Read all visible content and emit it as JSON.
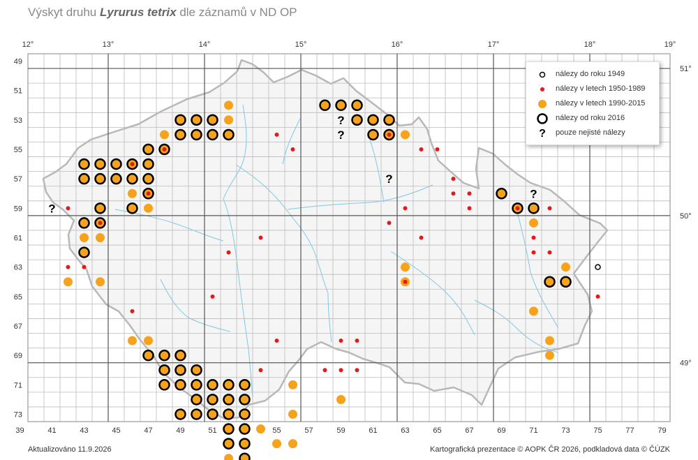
{
  "title": {
    "prefix": "Výskyt druhu",
    "species": "Lyrurus tetrix",
    "suffix": "dle záznamů v ND OP"
  },
  "axes": {
    "lon_labels": [
      "12°",
      "13°",
      "14°",
      "15°",
      "16°",
      "17°",
      "18°",
      "19°"
    ],
    "lat_labels": [
      "51°",
      "50°",
      "49°"
    ],
    "row_labels": [
      "49",
      "51",
      "53",
      "55",
      "57",
      "59",
      "61",
      "63",
      "65",
      "67",
      "69",
      "71",
      "73"
    ],
    "col_labels": [
      "39",
      "41",
      "43",
      "45",
      "47",
      "49",
      "51",
      "53",
      "55",
      "57",
      "59",
      "61",
      "63",
      "65",
      "67",
      "69",
      "71",
      "73",
      "75",
      "77",
      "79"
    ]
  },
  "legend": [
    {
      "key": "pre1949",
      "label": "nálezy do roku 1949"
    },
    {
      "key": "y1950",
      "label": "nálezy v letech 1950-1989"
    },
    {
      "key": "y1990",
      "label": "nálezy v letech 1990-2015"
    },
    {
      "key": "y2016",
      "label": "nálezy od roku 2016"
    },
    {
      "key": "uncertain",
      "label": "pouze nejisté nálezy"
    }
  ],
  "colors": {
    "red": "#e31a1c",
    "orange": "#f7a21b",
    "black": "#000000",
    "grid": "#bbbbbb",
    "major": "#999999",
    "river": "#6fc3de",
    "border": "#b5b5b5"
  },
  "icon_names": {
    "uncertain": "question-mark-icon",
    "pre1949": "small-hollow-circle-icon",
    "y2016": "bold-ring-icon",
    "y1950": "red-dot-icon",
    "y1990": "orange-disc-icon"
  },
  "markers": [
    {
      "c": 4,
      "r": 9,
      "o": 1
    },
    {
      "c": 5,
      "r": 9,
      "o": 1
    },
    {
      "c": 6,
      "r": 9,
      "o": 1
    },
    {
      "c": 5,
      "r": 10,
      "o": 1
    },
    {
      "c": 10,
      "r": 11,
      "o": 1
    },
    {
      "c": 11,
      "r": 11,
      "o": 1
    },
    {
      "c": 12,
      "r": 11,
      "o": 1
    },
    {
      "c": 13,
      "r": 11,
      "o": 1
    },
    {
      "c": 10,
      "r": 12,
      "o": 1
    },
    {
      "c": 11,
      "r": 12,
      "o": 1
    },
    {
      "c": 12,
      "r": 12,
      "o": 1
    },
    {
      "c": 13,
      "r": 12,
      "o": 1
    },
    {
      "c": 11,
      "r": 13,
      "o": 1
    },
    {
      "c": 12,
      "r": 13,
      "o": 1
    },
    {
      "c": 9,
      "r": 14,
      "o": 1
    },
    {
      "c": 10,
      "r": 14,
      "o": 1
    },
    {
      "c": 18,
      "r": 1,
      "o": 1
    },
    {
      "c": 19,
      "r": 1,
      "o": 1
    },
    {
      "c": 20,
      "r": 1,
      "o": 1
    },
    {
      "c": 20,
      "r": 2,
      "o": 1
    },
    {
      "c": 21,
      "r": 2,
      "o": 1
    },
    {
      "c": 22,
      "r": 2,
      "o": 1
    },
    {
      "c": 21,
      "r": 3,
      "o": 1
    },
    {
      "c": 22,
      "r": 3,
      "o": 1
    },
    {
      "c": 32,
      "r": 7,
      "o": 1
    },
    {
      "c": 33,
      "r": 7,
      "o": 1
    },
    {
      "c": 32,
      "r": 9,
      "o": 1
    },
    {
      "c": 35,
      "r": 2,
      "o": 1
    },
    {
      "c": 35,
      "r": 3,
      "o": 1
    },
    {
      "c": 29,
      "r": 8,
      "o": 1
    }
  ],
  "chart_data": {
    "type": "scatter",
    "grid": true,
    "legend_position": "top-right",
    "x_axis_labels": [
      "39",
      "41",
      "43",
      "45",
      "47",
      "49",
      "51",
      "53",
      "55",
      "57",
      "59",
      "61",
      "63",
      "65",
      "67",
      "69",
      "71",
      "73",
      "75",
      "77",
      "79"
    ],
    "y_axis_labels": [
      "49",
      "51",
      "53",
      "55",
      "57",
      "59",
      "61",
      "63",
      "65",
      "67",
      "69",
      "71",
      "73"
    ],
    "lon_labels": [
      "12°",
      "13°",
      "14°",
      "15°",
      "16°",
      "17°",
      "18°",
      "19°"
    ],
    "lat_labels": [
      "51°",
      "50°",
      "49°"
    ],
    "series": [
      {
        "name": "nálezy do roku 1949",
        "points": [
          [
            73,
            62
          ]
        ]
      },
      {
        "name": "nálezy v letech 1950-1989",
        "points": [
          [
            40,
            58
          ],
          [
            40,
            62
          ],
          [
            41,
            62
          ],
          [
            42,
            59
          ],
          [
            44,
            55
          ],
          [
            45,
            57
          ],
          [
            46,
            54
          ],
          [
            44,
            65
          ],
          [
            53,
            53
          ],
          [
            54,
            54
          ],
          [
            52,
            60
          ],
          [
            50,
            61
          ],
          [
            49,
            64
          ],
          [
            53,
            67
          ],
          [
            52,
            69
          ],
          [
            57,
            69
          ],
          [
            58,
            69
          ],
          [
            57,
            67
          ],
          [
            58,
            67
          ],
          [
            56,
            69
          ],
          [
            60,
            53
          ],
          [
            62,
            54
          ],
          [
            63,
            54
          ],
          [
            64,
            56
          ],
          [
            64,
            57
          ],
          [
            65,
            57
          ],
          [
            65,
            58
          ],
          [
            61,
            58
          ],
          [
            62,
            60
          ],
          [
            69,
            60
          ],
          [
            70,
            61
          ],
          [
            70,
            58
          ],
          [
            73,
            64
          ],
          [
            69,
            61
          ],
          [
            68,
            58
          ],
          [
            61,
            63
          ],
          [
            60,
            59
          ]
        ]
      },
      {
        "name": "nálezy v letech 1990-2015",
        "points": [
          [
            44,
            55
          ],
          [
            44,
            57
          ],
          [
            44,
            58
          ],
          [
            41,
            60
          ],
          [
            42,
            60
          ],
          [
            40,
            63
          ],
          [
            42,
            63
          ],
          [
            45,
            56
          ],
          [
            50,
            51
          ],
          [
            50,
            52
          ],
          [
            46,
            53
          ],
          [
            61,
            53
          ],
          [
            45,
            57
          ],
          [
            45,
            58
          ],
          [
            61,
            62
          ],
          [
            61,
            63
          ],
          [
            69,
            59
          ],
          [
            71,
            62
          ],
          [
            69,
            65
          ],
          [
            70,
            67
          ],
          [
            70,
            68
          ],
          [
            54,
            70
          ],
          [
            54,
            72
          ],
          [
            57,
            71
          ],
          [
            52,
            73
          ],
          [
            53,
            74
          ],
          [
            54,
            74
          ],
          [
            44,
            67
          ],
          [
            45,
            67
          ],
          [
            50,
            75
          ]
        ]
      },
      {
        "name": "nálezy od roku 2016",
        "points": [
          [
            41,
            55
          ],
          [
            42,
            55
          ],
          [
            43,
            55
          ],
          [
            44,
            55
          ],
          [
            45,
            55
          ],
          [
            41,
            56
          ],
          [
            42,
            56
          ],
          [
            43,
            56
          ],
          [
            44,
            56
          ],
          [
            45,
            56
          ],
          [
            45,
            57
          ],
          [
            44,
            58
          ],
          [
            42,
            58
          ],
          [
            41,
            59
          ],
          [
            42,
            59
          ],
          [
            41,
            61
          ],
          [
            45,
            54
          ],
          [
            46,
            54
          ],
          [
            47,
            52
          ],
          [
            48,
            52
          ],
          [
            49,
            52
          ],
          [
            47,
            53
          ],
          [
            48,
            53
          ],
          [
            49,
            53
          ],
          [
            50,
            53
          ],
          [
            56,
            51
          ],
          [
            57,
            51
          ],
          [
            58,
            51
          ],
          [
            58,
            52
          ],
          [
            59,
            52
          ],
          [
            60,
            52
          ],
          [
            59,
            53
          ],
          [
            60,
            53
          ],
          [
            67,
            57
          ],
          [
            68,
            58
          ],
          [
            69,
            58
          ],
          [
            70,
            63
          ],
          [
            71,
            63
          ],
          [
            45,
            68
          ],
          [
            46,
            68
          ],
          [
            47,
            68
          ],
          [
            46,
            69
          ],
          [
            47,
            69
          ],
          [
            48,
            69
          ],
          [
            46,
            70
          ],
          [
            47,
            70
          ],
          [
            48,
            70
          ],
          [
            49,
            70
          ],
          [
            50,
            70
          ],
          [
            51,
            70
          ],
          [
            48,
            71
          ],
          [
            49,
            71
          ],
          [
            50,
            71
          ],
          [
            51,
            71
          ],
          [
            47,
            72
          ],
          [
            48,
            72
          ],
          [
            49,
            72
          ],
          [
            50,
            72
          ],
          [
            51,
            72
          ],
          [
            50,
            73
          ],
          [
            51,
            73
          ],
          [
            51,
            74
          ],
          [
            50,
            74
          ],
          [
            51,
            75
          ]
        ]
      },
      {
        "name": "pouze nejisté nálezy",
        "points": [
          [
            39,
            58
          ],
          [
            57,
            52
          ],
          [
            57,
            53
          ],
          [
            60,
            56
          ],
          [
            69,
            57
          ]
        ]
      }
    ]
  },
  "footer": {
    "update": "Aktualizováno 11.9.2026",
    "credit": "Kartografická prezentace © AOPK ČR 2026, podkladová data © ČÚZK"
  }
}
